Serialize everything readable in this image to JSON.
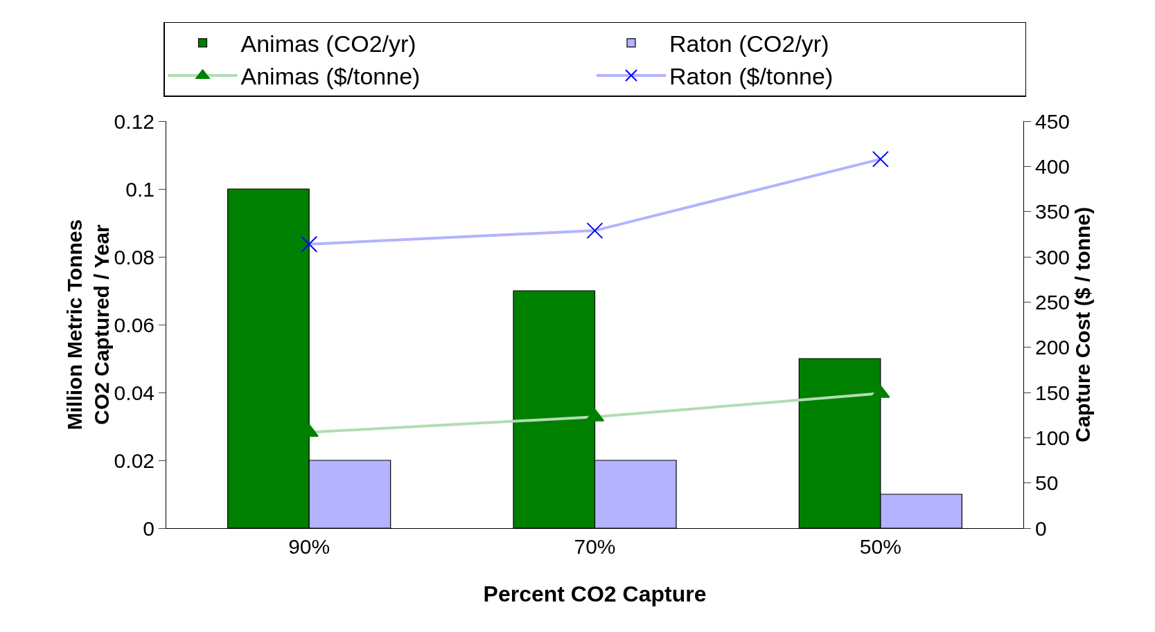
{
  "chart_data": {
    "type": "bar",
    "categories": [
      "90%",
      "70%",
      "50%"
    ],
    "xlabel": "Percent CO2 Capture",
    "ylabel": "Million Metric Tonnes\nCO2 Captured / Year",
    "y2label": "Capture Cost ($ / tonne)",
    "ylim": [
      0,
      0.12
    ],
    "yticks": [
      0,
      0.02,
      0.04,
      0.06,
      0.08,
      0.1,
      0.12
    ],
    "y2lim": [
      0,
      450
    ],
    "y2ticks": [
      0,
      50,
      100,
      150,
      200,
      250,
      300,
      350,
      400,
      450
    ],
    "grid": false,
    "legend": "top",
    "series": [
      {
        "name": "Animas (CO2/yr)",
        "color": "#008000",
        "values": [
          0.1,
          0.07,
          0.05
        ]
      },
      {
        "name": "Raton (CO2/yr)",
        "color": "#b3b3ff",
        "values": [
          0.02,
          0.02,
          0.01
        ]
      },
      {
        "name": "Animas ($/tonne)",
        "type": "line",
        "axis": "y2",
        "color": "#b3dcb3",
        "marker": "triangle",
        "values": [
          106,
          123,
          149
        ]
      },
      {
        "name": "Raton ($/tonne)",
        "type": "line",
        "axis": "y2",
        "color": "#b3b3ff",
        "marker": "cross",
        "values": [
          314,
          329,
          408
        ]
      }
    ]
  }
}
